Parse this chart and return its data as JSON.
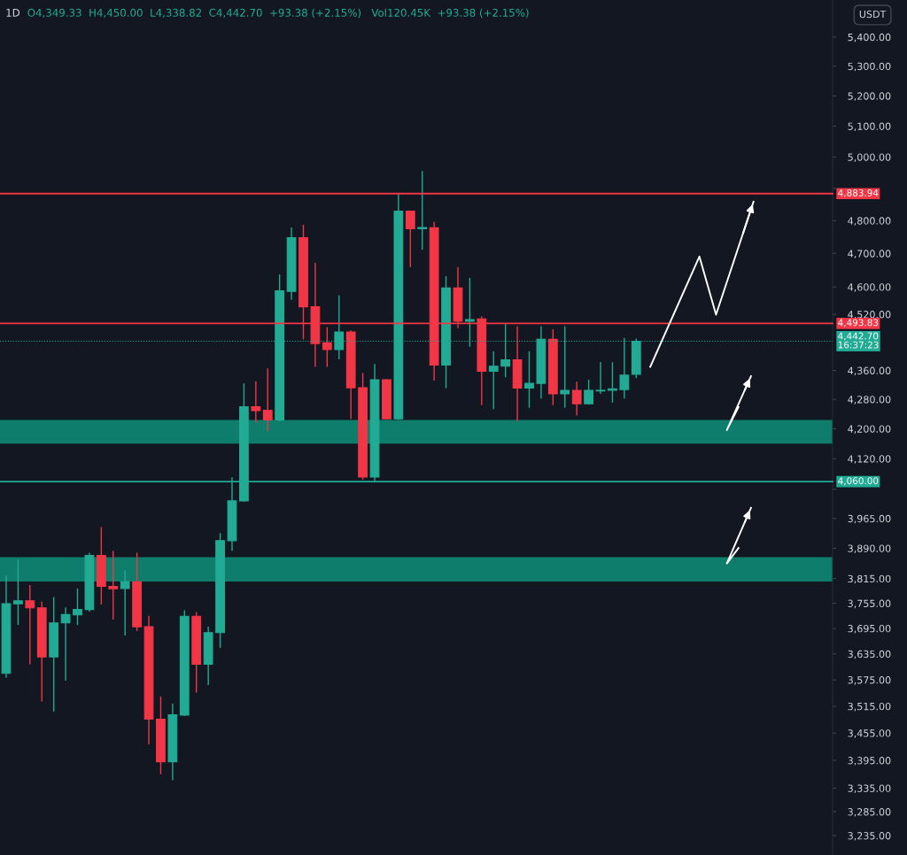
{
  "chart_data": {
    "type": "candlestick",
    "title": "1D",
    "subtitle": "O4,349.33  H4,450.00  L4,338.82  C4,442.70  +93.38 (+2.15%)   Vol120.45K  +93.38 (+2.15%)",
    "ylabel": "USDT",
    "categories": [
      null,
      null,
      null,
      null,
      null,
      null,
      null,
      null,
      null,
      null,
      null,
      null,
      null,
      null,
      null,
      null,
      null,
      null,
      null,
      null,
      null,
      null,
      null,
      null,
      null,
      null,
      null,
      null,
      null,
      null,
      null,
      null,
      null,
      null,
      null,
      null,
      null,
      null,
      null,
      null,
      null,
      null,
      null,
      null,
      null,
      null,
      null,
      null,
      null,
      null,
      null,
      null,
      null,
      null,
      null,
      null,
      null,
      null,
      null,
      null,
      null,
      null,
      null,
      null,
      null,
      null,
      null,
      null,
      null,
      null
    ],
    "ohlc": [
      [
        3590,
        3822,
        3580,
        3754
      ],
      [
        3754,
        3862,
        3703,
        3761
      ],
      [
        3761,
        3799,
        3611,
        3744
      ],
      [
        3744,
        3759,
        3526,
        3628
      ],
      [
        3628,
        3770,
        3503,
        3708
      ],
      [
        3708,
        3745,
        3573,
        3728
      ],
      [
        3727,
        3791,
        3703,
        3740
      ],
      [
        3740,
        3879,
        3735,
        3872
      ],
      [
        3872,
        3943,
        3752,
        3796
      ],
      [
        3796,
        3883,
        3716,
        3790
      ],
      [
        3791,
        3835,
        3678,
        3808
      ],
      [
        3807,
        3879,
        3689,
        3699
      ],
      [
        3699,
        3725,
        3430,
        3486
      ],
      [
        3486,
        3537,
        3365,
        3392
      ],
      [
        3392,
        3521,
        3352,
        3496
      ],
      [
        3495,
        3738,
        3493,
        3724
      ],
      [
        3724,
        3734,
        3546,
        3611
      ],
      [
        3611,
        3699,
        3563,
        3685
      ],
      [
        3685,
        3928,
        3649,
        3909
      ],
      [
        3909,
        4071,
        3883,
        4010
      ],
      [
        4010,
        4324,
        4008,
        4260
      ],
      [
        4260,
        4330,
        4216,
        4249
      ],
      [
        4250,
        4366,
        4193,
        4224
      ],
      [
        4224,
        4637,
        4220,
        4589
      ],
      [
        4587,
        4779,
        4562,
        4748
      ],
      [
        4748,
        4787,
        4448,
        4542
      ],
      [
        4542,
        4672,
        4370,
        4436
      ],
      [
        4438,
        4483,
        4370,
        4419
      ],
      [
        4419,
        4575,
        4391,
        4469
      ],
      [
        4469,
        4474,
        4227,
        4312
      ],
      [
        4312,
        4353,
        4065,
        4072
      ],
      [
        4072,
        4378,
        4060,
        4334
      ],
      [
        4334,
        4336,
        4225,
        4227
      ],
      [
        4227,
        4884,
        4224,
        4829
      ],
      [
        4829,
        4830,
        4659,
        4775
      ],
      [
        4775,
        4955,
        4711,
        4779
      ],
      [
        4778,
        4797,
        4332,
        4375
      ],
      [
        4375,
        4632,
        4311,
        4597
      ],
      [
        4597,
        4659,
        4480,
        4500
      ],
      [
        4500,
        4627,
        4427,
        4505
      ],
      [
        4507,
        4514,
        4264,
        4358
      ],
      [
        4358,
        4414,
        4253,
        4372
      ],
      [
        4372,
        4494,
        4341,
        4390
      ],
      [
        4390,
        4486,
        4220,
        4311
      ],
      [
        4311,
        4414,
        4257,
        4324
      ],
      [
        4324,
        4486,
        4282,
        4448
      ],
      [
        4448,
        4477,
        4264,
        4295
      ],
      [
        4295,
        4486,
        4257,
        4305
      ],
      [
        4305,
        4329,
        4236,
        4268
      ],
      [
        4268,
        4334,
        4266,
        4305
      ],
      [
        4303,
        4384,
        4295,
        4305
      ],
      [
        4305,
        4383,
        4271,
        4309
      ],
      [
        4307,
        4452,
        4282,
        4347
      ],
      [
        4349.33,
        4450.0,
        4338.82,
        4442.7
      ],
      null,
      null,
      null,
      null,
      null,
      null,
      null,
      null,
      null,
      null,
      null,
      null,
      null,
      null,
      null,
      null
    ],
    "colors": [
      "#22ab94",
      "#22ab94",
      "#f23645",
      "#f23645",
      "#22ab94",
      "#22ab94",
      "#22ab94",
      "#22ab94",
      "#f23645",
      "#f23645",
      "#22ab94",
      "#f23645",
      "#f23645",
      "#f23645",
      "#22ab94",
      "#22ab94",
      "#f23645",
      "#22ab94",
      "#22ab94",
      "#22ab94",
      "#22ab94",
      "#f23645",
      "#f23645",
      "#22ab94",
      "#22ab94",
      "#f23645",
      "#f23645",
      "#f23645",
      "#22ab94",
      "#f23645",
      "#f23645",
      "#22ab94",
      "#f23645",
      "#22ab94",
      "#f23645",
      "#22ab94",
      "#f23645",
      "#22ab94",
      "#f23645",
      "#22ab94",
      "#f23645",
      "#22ab94",
      "#22ab94",
      "#f23645",
      "#22ab94",
      "#22ab94",
      "#f23645",
      "#22ab94",
      "#f23645",
      "#22ab94",
      "#22ab94",
      "#22ab94",
      "#22ab94",
      "#22ab94",
      null,
      null,
      null,
      null,
      null,
      null,
      null,
      null,
      null,
      null,
      null,
      null,
      null,
      null,
      null,
      null
    ],
    "log": true,
    "ylim": [
      3195,
      5530
    ],
    "yticks": [
      {
        "value": 5400,
        "label": "5,400.00"
      },
      {
        "value": 5300,
        "label": "5,300.00"
      },
      {
        "value": 5200,
        "label": "5,200.00"
      },
      {
        "value": 5100,
        "label": "5,100.00"
      },
      {
        "value": 5000,
        "label": "5,000.00"
      },
      {
        "value": 4900,
        "label": null
      },
      {
        "value": 4800,
        "label": "4,800.00"
      },
      {
        "value": 4700,
        "label": "4,700.00"
      },
      {
        "value": 4600,
        "label": "4,600.00"
      },
      {
        "value": 4520,
        "label": "4,520.00"
      },
      {
        "value": 4360,
        "label": "4,360.00"
      },
      {
        "value": 4280,
        "label": "4,280.00"
      },
      {
        "value": 4200,
        "label": "4,200.00"
      },
      {
        "value": 4120,
        "label": "4,120.00"
      },
      {
        "value": 4040,
        "label": null
      },
      {
        "value": 3965,
        "label": "3,965.00"
      },
      {
        "value": 3890,
        "label": "3,890.00"
      },
      {
        "value": 3815,
        "label": "3,815.00"
      },
      {
        "value": 3755,
        "label": "3,755.00"
      },
      {
        "value": 3695,
        "label": "3,695.00"
      },
      {
        "value": 3635,
        "label": "3,635.00"
      },
      {
        "value": 3575,
        "label": "3,575.00"
      },
      {
        "value": 3515,
        "label": "3,515.00"
      },
      {
        "value": 3455,
        "label": "3,455.00"
      },
      {
        "value": 3395,
        "label": "3,395.00"
      },
      {
        "value": 3335,
        "label": "3,335.00"
      },
      {
        "value": 3285,
        "label": "3,285.00"
      },
      {
        "value": 3235,
        "label": "3,235.00"
      }
    ],
    "tick_labels": "y",
    "grid": false,
    "legend": false,
    "bands": [
      {
        "axis": "y",
        "from": 4160,
        "to": 4224,
        "color": "#0f8f78"
      },
      {
        "axis": "y",
        "from": 3808,
        "to": 3868,
        "color": "#0f8f78"
      }
    ],
    "ref_lines": [
      {
        "axis": "y",
        "value": 4883.94,
        "label": "4,883.94",
        "color": "#f23645",
        "line_style": "solid"
      },
      {
        "axis": "y",
        "value": 4493.83,
        "label": "4,493.83",
        "color": "#f23645",
        "line_style": "solid"
      },
      {
        "axis": "y",
        "value": 4442.7,
        "label": "4,442.70\n16:37:23",
        "color": "#22ab94",
        "line_style": "dotted"
      },
      {
        "axis": "y",
        "value": 4060.0,
        "label": "4,060.00",
        "color": "#22ab94",
        "line_style": "solid"
      }
    ]
  }
}
